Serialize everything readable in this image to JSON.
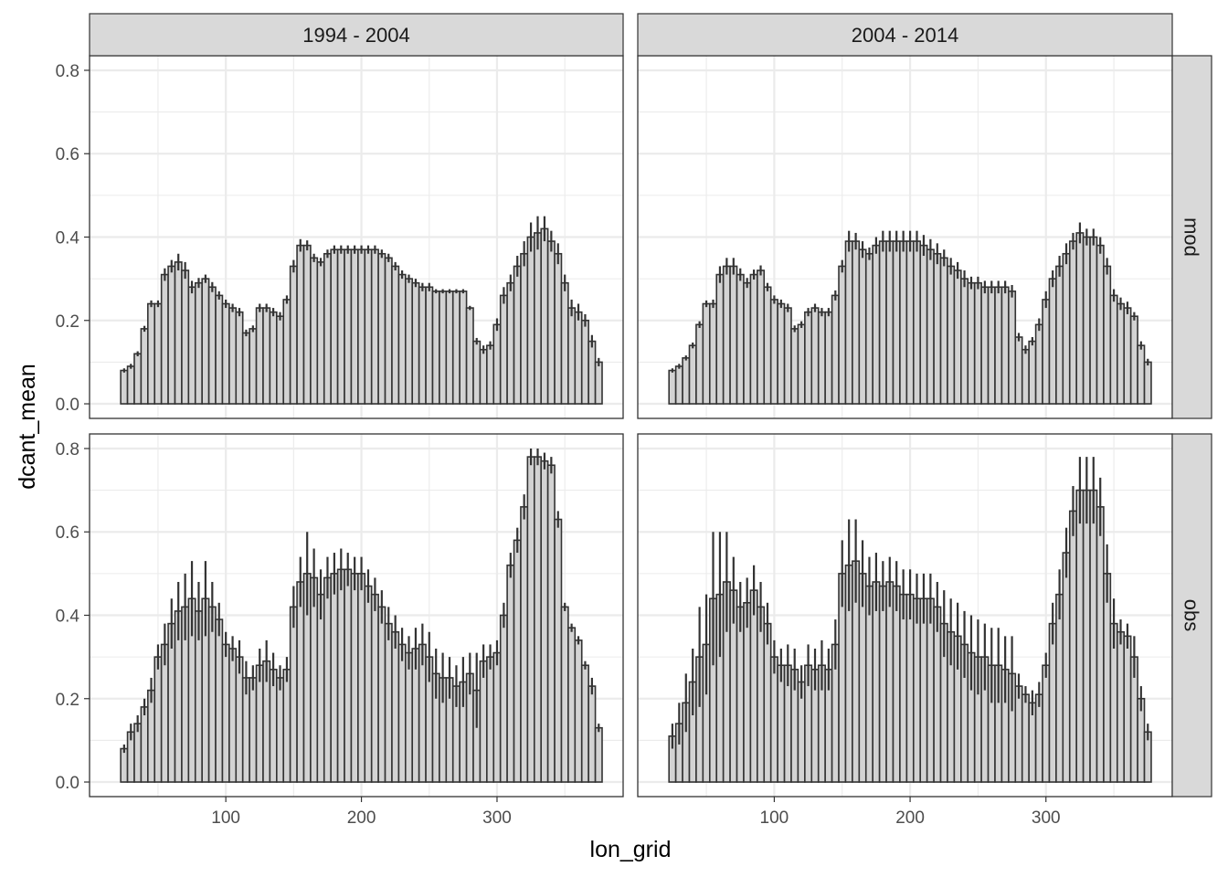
{
  "chart_data": {
    "type": "bar",
    "facet_columns": [
      "1994 - 2004",
      "2004 - 2014"
    ],
    "facet_rows": [
      "mod",
      "obs"
    ],
    "xlabel": "lon_grid",
    "ylabel": "dcant_mean",
    "x_ticks": [
      100,
      200,
      300
    ],
    "y_ticks": [
      0.0,
      0.2,
      0.4,
      0.6,
      0.8
    ],
    "y_tick_labels": [
      "0.0",
      "0.2",
      "0.4",
      "0.6",
      "0.8"
    ],
    "x_tick_labels": [
      "100",
      "200",
      "300"
    ],
    "xlim": [
      -0.5,
      393
    ],
    "ylim": [
      -0.035,
      0.835
    ],
    "grid": true,
    "bar_width": 5,
    "x": [
      25,
      30,
      35,
      40,
      45,
      50,
      55,
      60,
      65,
      70,
      75,
      80,
      85,
      90,
      95,
      100,
      105,
      110,
      115,
      120,
      125,
      130,
      135,
      140,
      145,
      150,
      155,
      160,
      165,
      170,
      175,
      180,
      185,
      190,
      195,
      200,
      205,
      210,
      215,
      220,
      225,
      230,
      235,
      240,
      245,
      250,
      255,
      260,
      265,
      270,
      275,
      280,
      285,
      290,
      295,
      300,
      305,
      310,
      315,
      320,
      325,
      330,
      335,
      340,
      345,
      350,
      355,
      360,
      365,
      370,
      375
    ],
    "panels": [
      {
        "row": "mod",
        "col": "1994 - 2004",
        "values": [
          0.08,
          0.09,
          0.12,
          0.18,
          0.24,
          0.24,
          0.31,
          0.33,
          0.34,
          0.32,
          0.28,
          0.29,
          0.3,
          0.28,
          0.26,
          0.24,
          0.23,
          0.22,
          0.17,
          0.18,
          0.23,
          0.23,
          0.22,
          0.21,
          0.25,
          0.33,
          0.38,
          0.38,
          0.35,
          0.34,
          0.36,
          0.37,
          0.37,
          0.37,
          0.37,
          0.37,
          0.37,
          0.37,
          0.36,
          0.35,
          0.33,
          0.31,
          0.3,
          0.29,
          0.28,
          0.28,
          0.27,
          0.27,
          0.27,
          0.27,
          0.27,
          0.23,
          0.15,
          0.13,
          0.14,
          0.19,
          0.26,
          0.29,
          0.33,
          0.36,
          0.4,
          0.41,
          0.42,
          0.39,
          0.36,
          0.29,
          0.23,
          0.22,
          0.2,
          0.15,
          0.1
        ],
        "err": [
          0.005,
          0.006,
          0.006,
          0.007,
          0.008,
          0.008,
          0.015,
          0.015,
          0.02,
          0.02,
          0.015,
          0.012,
          0.01,
          0.012,
          0.01,
          0.01,
          0.01,
          0.01,
          0.008,
          0.008,
          0.01,
          0.01,
          0.01,
          0.01,
          0.01,
          0.015,
          0.015,
          0.012,
          0.01,
          0.01,
          0.01,
          0.01,
          0.01,
          0.01,
          0.01,
          0.01,
          0.01,
          0.01,
          0.01,
          0.01,
          0.01,
          0.01,
          0.01,
          0.01,
          0.01,
          0.01,
          0.005,
          0.005,
          0.005,
          0.005,
          0.005,
          0.005,
          0.008,
          0.01,
          0.01,
          0.015,
          0.02,
          0.02,
          0.025,
          0.03,
          0.035,
          0.04,
          0.03,
          0.025,
          0.025,
          0.02,
          0.02,
          0.02,
          0.015,
          0.015,
          0.01
        ]
      },
      {
        "row": "mod",
        "col": "2004 - 2014",
        "values": [
          0.08,
          0.09,
          0.11,
          0.14,
          0.19,
          0.24,
          0.24,
          0.31,
          0.33,
          0.33,
          0.31,
          0.29,
          0.31,
          0.32,
          0.28,
          0.25,
          0.24,
          0.23,
          0.18,
          0.19,
          0.22,
          0.23,
          0.22,
          0.22,
          0.26,
          0.33,
          0.39,
          0.39,
          0.37,
          0.36,
          0.38,
          0.39,
          0.39,
          0.39,
          0.39,
          0.39,
          0.39,
          0.38,
          0.37,
          0.36,
          0.35,
          0.33,
          0.32,
          0.3,
          0.29,
          0.29,
          0.28,
          0.28,
          0.28,
          0.28,
          0.27,
          0.16,
          0.13,
          0.15,
          0.19,
          0.25,
          0.3,
          0.33,
          0.36,
          0.39,
          0.41,
          0.4,
          0.4,
          0.38,
          0.33,
          0.26,
          0.24,
          0.23,
          0.21,
          0.14,
          0.1
        ],
        "err": [
          0.005,
          0.006,
          0.006,
          0.007,
          0.008,
          0.008,
          0.01,
          0.02,
          0.02,
          0.02,
          0.015,
          0.012,
          0.012,
          0.012,
          0.01,
          0.01,
          0.01,
          0.01,
          0.008,
          0.008,
          0.01,
          0.01,
          0.01,
          0.01,
          0.012,
          0.015,
          0.025,
          0.02,
          0.02,
          0.015,
          0.02,
          0.025,
          0.025,
          0.025,
          0.025,
          0.025,
          0.025,
          0.025,
          0.025,
          0.025,
          0.02,
          0.02,
          0.02,
          0.02,
          0.015,
          0.015,
          0.015,
          0.015,
          0.015,
          0.015,
          0.015,
          0.01,
          0.01,
          0.01,
          0.015,
          0.02,
          0.02,
          0.025,
          0.025,
          0.02,
          0.025,
          0.02,
          0.02,
          0.02,
          0.02,
          0.015,
          0.015,
          0.015,
          0.01,
          0.01,
          0.008
        ]
      },
      {
        "row": "obs",
        "col": "1994 - 2004",
        "values": [
          0.08,
          0.12,
          0.14,
          0.18,
          0.22,
          0.3,
          0.33,
          0.38,
          0.41,
          0.42,
          0.44,
          0.41,
          0.44,
          0.42,
          0.39,
          0.33,
          0.32,
          0.3,
          0.25,
          0.25,
          0.28,
          0.29,
          0.27,
          0.25,
          0.27,
          0.42,
          0.48,
          0.5,
          0.49,
          0.45,
          0.49,
          0.5,
          0.51,
          0.51,
          0.5,
          0.5,
          0.47,
          0.45,
          0.42,
          0.38,
          0.36,
          0.33,
          0.31,
          0.32,
          0.33,
          0.3,
          0.26,
          0.25,
          0.25,
          0.23,
          0.24,
          0.26,
          0.22,
          0.29,
          0.3,
          0.31,
          0.4,
          0.52,
          0.58,
          0.66,
          0.78,
          0.78,
          0.77,
          0.76,
          0.63,
          0.42,
          0.37,
          0.34,
          0.28,
          0.23,
          0.13
        ],
        "err": [
          0.01,
          0.02,
          0.02,
          0.02,
          0.03,
          0.03,
          0.05,
          0.06,
          0.07,
          0.08,
          0.09,
          0.07,
          0.09,
          0.06,
          0.04,
          0.03,
          0.03,
          0.04,
          0.04,
          0.03,
          0.04,
          0.05,
          0.04,
          0.03,
          0.03,
          0.05,
          0.06,
          0.1,
          0.07,
          0.06,
          0.05,
          0.05,
          0.05,
          0.04,
          0.04,
          0.04,
          0.04,
          0.04,
          0.04,
          0.04,
          0.04,
          0.04,
          0.04,
          0.05,
          0.05,
          0.06,
          0.06,
          0.06,
          0.05,
          0.05,
          0.06,
          0.05,
          0.09,
          0.04,
          0.03,
          0.03,
          0.03,
          0.03,
          0.03,
          0.03,
          0.02,
          0.02,
          0.02,
          0.02,
          0.02,
          0.01,
          0.01,
          0.01,
          0.01,
          0.02,
          0.01
        ]
      },
      {
        "row": "obs",
        "col": "2004 - 2014",
        "values": [
          0.11,
          0.14,
          0.19,
          0.24,
          0.3,
          0.33,
          0.44,
          0.45,
          0.48,
          0.46,
          0.42,
          0.43,
          0.46,
          0.42,
          0.38,
          0.3,
          0.28,
          0.28,
          0.27,
          0.24,
          0.28,
          0.27,
          0.28,
          0.27,
          0.33,
          0.5,
          0.52,
          0.53,
          0.5,
          0.47,
          0.48,
          0.47,
          0.48,
          0.47,
          0.45,
          0.45,
          0.44,
          0.44,
          0.44,
          0.42,
          0.38,
          0.36,
          0.35,
          0.33,
          0.31,
          0.3,
          0.3,
          0.28,
          0.28,
          0.27,
          0.26,
          0.23,
          0.21,
          0.19,
          0.21,
          0.28,
          0.38,
          0.45,
          0.55,
          0.65,
          0.7,
          0.7,
          0.7,
          0.66,
          0.5,
          0.38,
          0.36,
          0.35,
          0.3,
          0.2,
          0.12
        ],
        "err": [
          0.03,
          0.05,
          0.07,
          0.08,
          0.12,
          0.12,
          0.16,
          0.15,
          0.12,
          0.08,
          0.06,
          0.06,
          0.06,
          0.06,
          0.05,
          0.04,
          0.04,
          0.05,
          0.05,
          0.04,
          0.05,
          0.05,
          0.06,
          0.05,
          0.06,
          0.08,
          0.11,
          0.1,
          0.08,
          0.07,
          0.07,
          0.06,
          0.06,
          0.06,
          0.06,
          0.06,
          0.06,
          0.06,
          0.06,
          0.06,
          0.08,
          0.08,
          0.08,
          0.08,
          0.09,
          0.09,
          0.08,
          0.09,
          0.09,
          0.08,
          0.09,
          0.03,
          0.02,
          0.03,
          0.03,
          0.03,
          0.05,
          0.06,
          0.06,
          0.06,
          0.08,
          0.08,
          0.08,
          0.07,
          0.07,
          0.06,
          0.03,
          0.03,
          0.05,
          0.03,
          0.02
        ]
      }
    ]
  }
}
